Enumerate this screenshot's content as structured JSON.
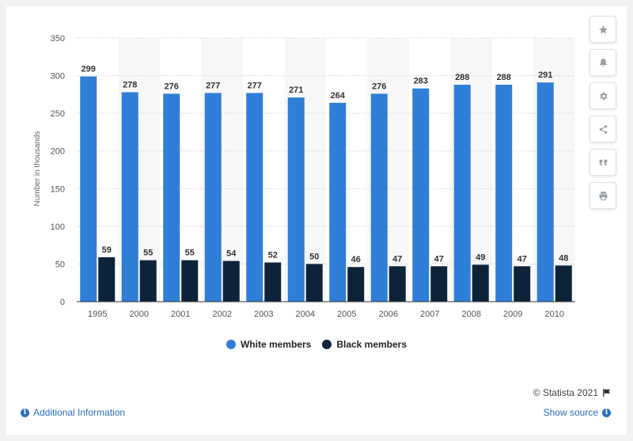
{
  "chart_data": {
    "type": "bar",
    "categories": [
      "1995",
      "2000",
      "2001",
      "2002",
      "2003",
      "2004",
      "2005",
      "2006",
      "2007",
      "2008",
      "2009",
      "2010"
    ],
    "series": [
      {
        "name": "White members",
        "values": [
          299,
          278,
          276,
          277,
          277,
          271,
          264,
          276,
          283,
          288,
          288,
          291
        ],
        "color": "#2f7ed8"
      },
      {
        "name": "Black members",
        "values": [
          59,
          55,
          55,
          54,
          52,
          50,
          46,
          47,
          47,
          49,
          47,
          48
        ],
        "color": "#0d233a"
      }
    ],
    "ylabel": "Number in thousands",
    "ylim": [
      0,
      350
    ],
    "yticks": [
      0,
      50,
      100,
      150,
      200,
      250,
      300,
      350
    ],
    "grid": true,
    "legend_position": "bottom-center"
  },
  "legend": {
    "white_label": "White members",
    "black_label": "Black members"
  },
  "toolbar": {
    "icons": [
      "star-icon",
      "bell-icon",
      "gear-icon",
      "share-icon",
      "quote-icon",
      "print-icon"
    ]
  },
  "footer": {
    "credit": "© Statista 2021",
    "additional_info": "Additional Information",
    "show_source": "Show source"
  },
  "colors": {
    "white_series": "#2f7ed8",
    "black_series": "#0d233a",
    "link": "#2a6ebb"
  }
}
